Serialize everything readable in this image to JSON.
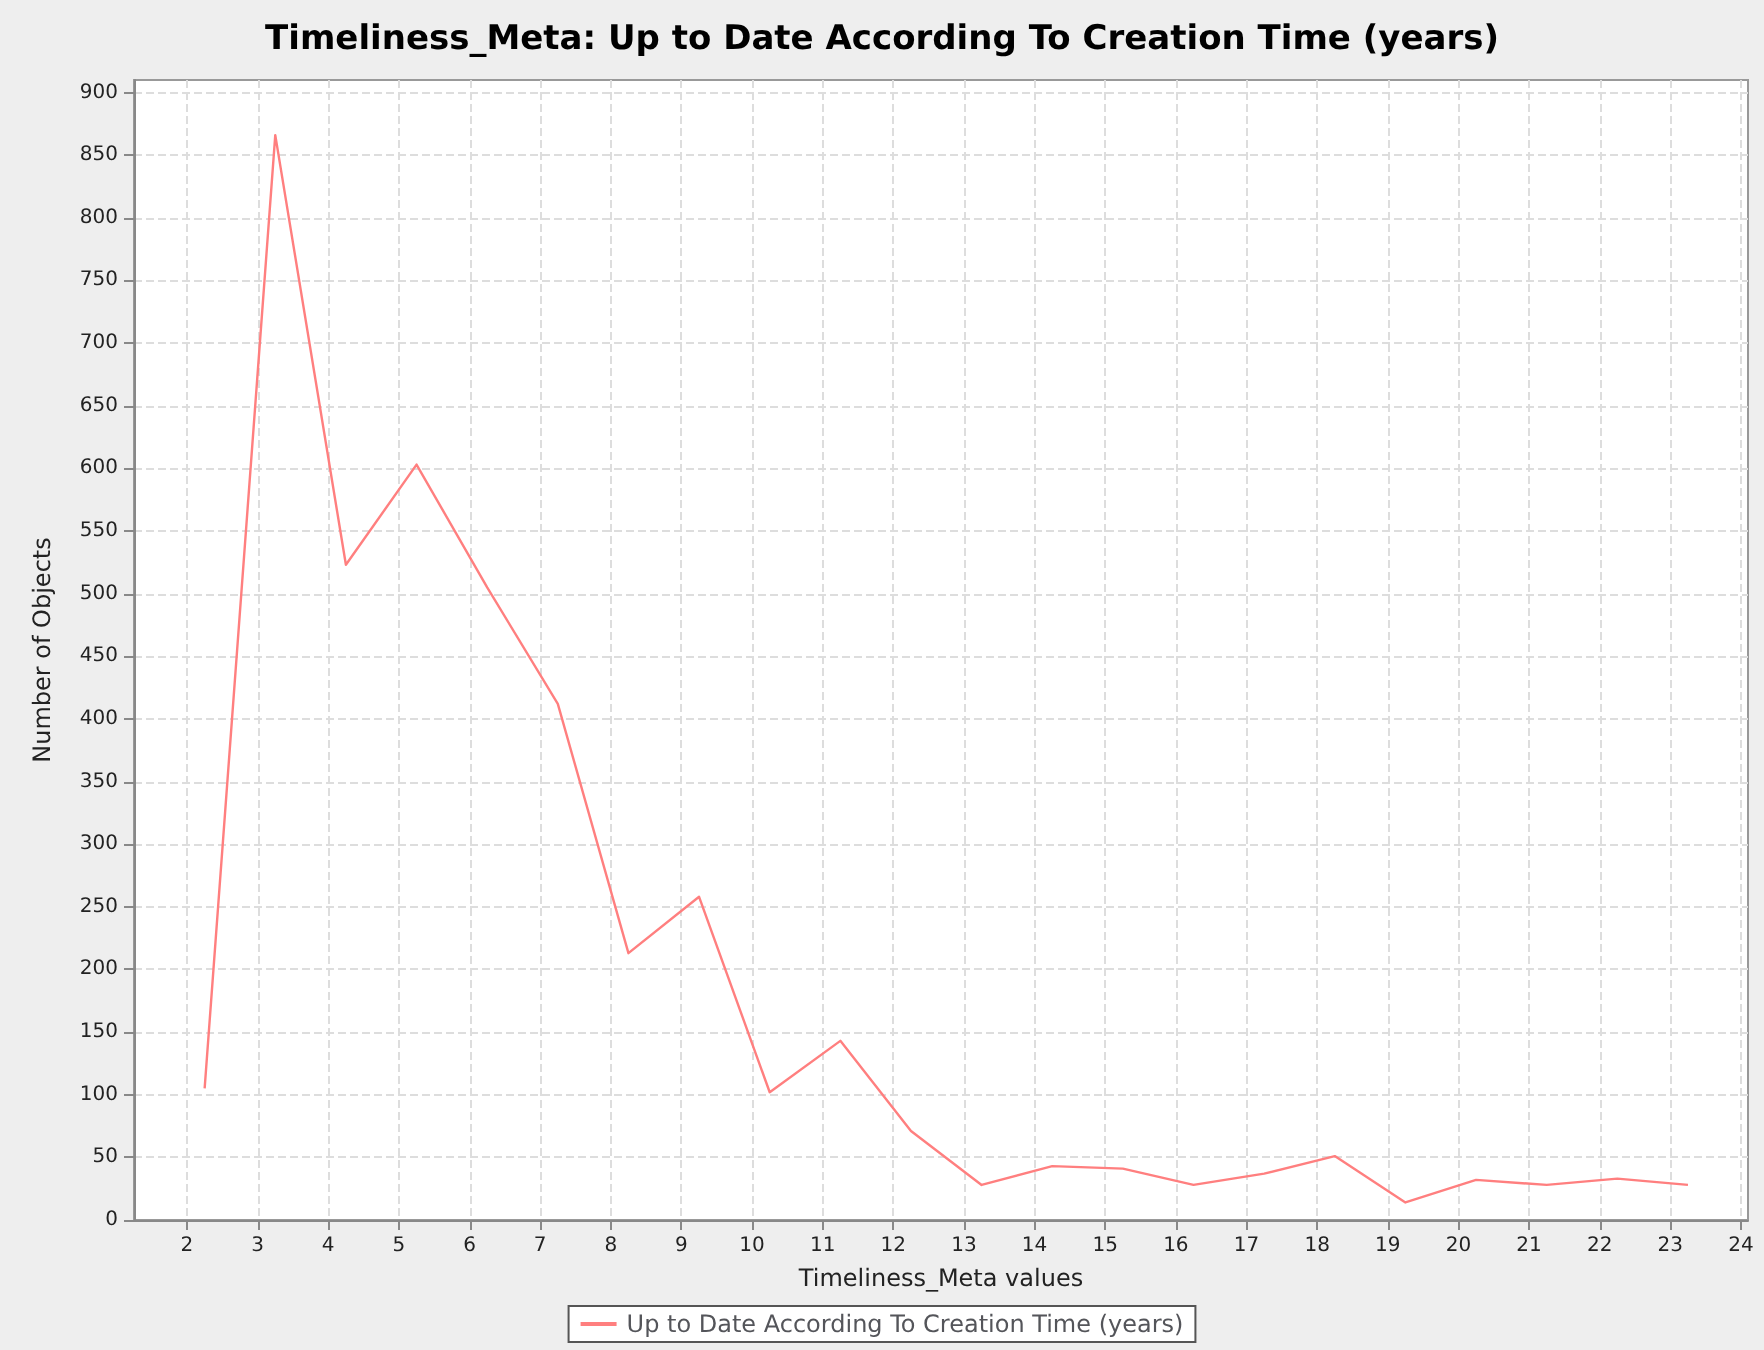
{
  "chart_data": {
    "type": "line",
    "title": "Timeliness_Meta: Up to Date According To Creation Time (years)",
    "xlabel": "Timeliness_Meta values",
    "ylabel": "Number of Objects",
    "x": [
      2.25,
      3.25,
      4.25,
      5.25,
      6.25,
      7.25,
      8.25,
      9.25,
      10.25,
      11.25,
      12.25,
      13.25,
      14.25,
      15.25,
      16.25,
      17.25,
      18.25,
      19.25,
      20.25,
      21.25,
      22.25,
      23.25
    ],
    "series": [
      {
        "name": "Up to Date According To Creation Time (years)",
        "color": "#ff7f7f",
        "values": [
          105,
          866,
          523,
          603,
          505,
          412,
          213,
          258,
          102,
          143,
          71,
          28,
          43,
          41,
          28,
          37,
          51,
          14,
          32,
          28,
          33,
          28
        ]
      }
    ],
    "xlim": [
      1.25,
      24.1
    ],
    "xticks": [
      2,
      3,
      4,
      5,
      6,
      7,
      8,
      9,
      10,
      11,
      12,
      13,
      14,
      15,
      16,
      17,
      18,
      19,
      20,
      21,
      22,
      23,
      24
    ],
    "ylim": [
      0,
      910
    ],
    "yticks": [
      0,
      50,
      100,
      150,
      200,
      250,
      300,
      350,
      400,
      450,
      500,
      550,
      600,
      650,
      700,
      750,
      800,
      850,
      900
    ],
    "grid": true,
    "legend": "bottom",
    "marker": "none",
    "line_style": "solid"
  }
}
